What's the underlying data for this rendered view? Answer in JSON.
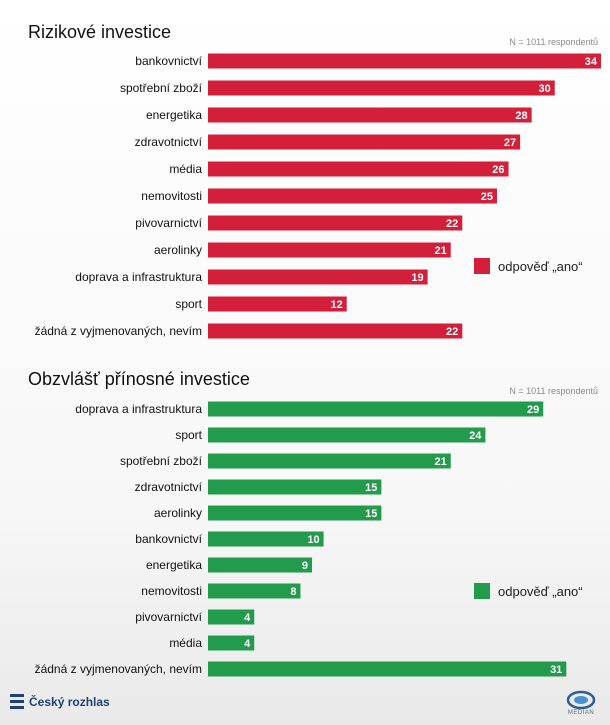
{
  "chart_data": [
    {
      "type": "bar",
      "orientation": "horizontal",
      "title": "Rizikové investice",
      "note": "N = 1011 respondentů",
      "legend": {
        "label": "odpověď „ano“",
        "color": "#d31f3a",
        "placement": "right"
      },
      "categories": [
        "bankovnictví",
        "spotřební zboží",
        "energetika",
        "zdravotnictví",
        "média",
        "nemovitosti",
        "pivovarnictví",
        "aerolinky",
        "doprava a infrastruktura",
        "sport",
        "žádná z vyjmenovaných, nevím"
      ],
      "values": [
        34,
        30,
        28,
        27,
        26,
        25,
        22,
        21,
        19,
        12,
        22
      ],
      "xlim": [
        0,
        34
      ]
    },
    {
      "type": "bar",
      "orientation": "horizontal",
      "title": "Obzvlášť přínosné investice",
      "note": "N = 1011 respondentů",
      "legend": {
        "label": "odpověď „ano“",
        "color": "#229b4d",
        "placement": "right"
      },
      "categories": [
        "doprava a infrastruktura",
        "sport",
        "spotřební zboží",
        "zdravotnictví",
        "aerolinky",
        "bankovnictví",
        "energetika",
        "nemovitosti",
        "pivovarnictví",
        "média",
        "žádná z vyjmenovaných, nevím"
      ],
      "values": [
        29,
        24,
        21,
        15,
        15,
        10,
        9,
        8,
        4,
        4,
        31
      ],
      "xlim": [
        0,
        34
      ]
    }
  ],
  "footer": {
    "left_logo_text": "Český rozhlas",
    "right_logo_text": "MEDIAN"
  },
  "icons": {
    "left_logo": "cesky-rozhlas-logo-icon",
    "right_logo": "median-logo-icon"
  }
}
